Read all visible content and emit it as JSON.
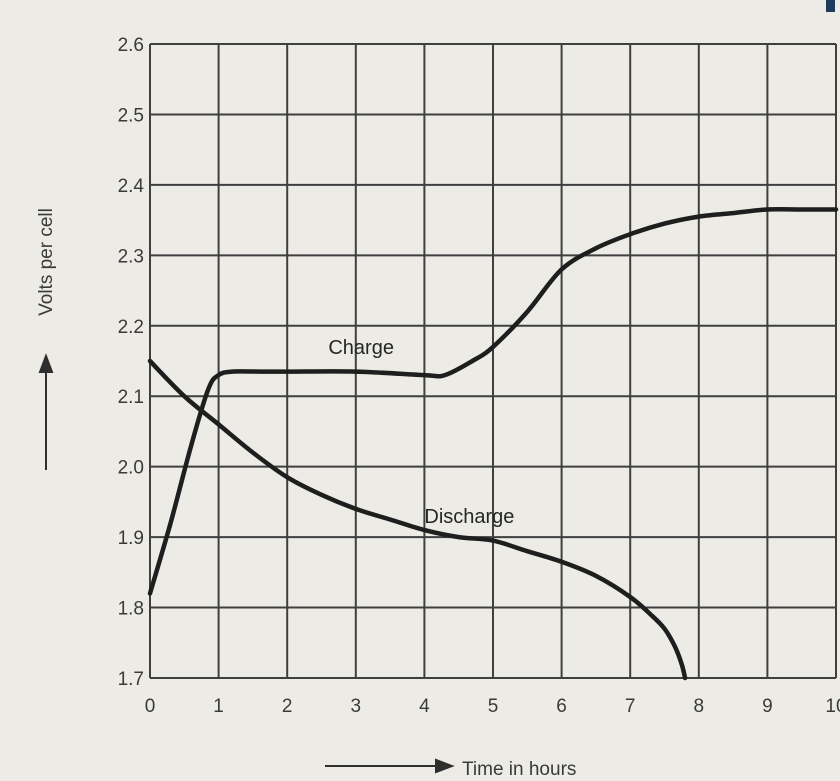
{
  "chart_data": {
    "type": "line",
    "title": "",
    "xlabel": "Time in hours",
    "ylabel": "Volts per cell",
    "xlim": [
      0,
      10
    ],
    "ylim": [
      1.7,
      2.6
    ],
    "x_ticks": [
      "0",
      "1",
      "2",
      "3",
      "4",
      "5",
      "6",
      "7",
      "8",
      "9",
      "10"
    ],
    "y_ticks": [
      "1.7",
      "1.8",
      "1.9",
      "2.0",
      "2.1",
      "2.2",
      "2.3",
      "2.4",
      "2.5",
      "2.6"
    ],
    "grid": true,
    "legend": "none",
    "series": [
      {
        "name": "Charge",
        "x": [
          0,
          0.3,
          0.6,
          0.85,
          1.0,
          1.2,
          1.6,
          2,
          3,
          4,
          4.3,
          4.7,
          5,
          5.5,
          6,
          6.5,
          7,
          7.5,
          8,
          8.5,
          9,
          9.5,
          10
        ],
        "y": [
          1.82,
          1.92,
          2.03,
          2.11,
          2.13,
          2.135,
          2.135,
          2.135,
          2.135,
          2.13,
          2.13,
          2.15,
          2.17,
          2.22,
          2.28,
          2.31,
          2.33,
          2.345,
          2.355,
          2.36,
          2.365,
          2.365,
          2.365
        ],
        "label_position": [
          2.6,
          2.16
        ]
      },
      {
        "name": "Discharge",
        "x": [
          0,
          0.5,
          1,
          1.5,
          2,
          2.5,
          3,
          3.5,
          4,
          4.5,
          5,
          5.5,
          6,
          6.5,
          7,
          7.3,
          7.5,
          7.65,
          7.75,
          7.8
        ],
        "y": [
          2.15,
          2.1,
          2.06,
          2.02,
          1.985,
          1.96,
          1.94,
          1.925,
          1.91,
          1.9,
          1.895,
          1.88,
          1.865,
          1.845,
          1.815,
          1.79,
          1.77,
          1.745,
          1.72,
          1.7
        ],
        "label_position": [
          4.0,
          1.92
        ]
      }
    ]
  }
}
